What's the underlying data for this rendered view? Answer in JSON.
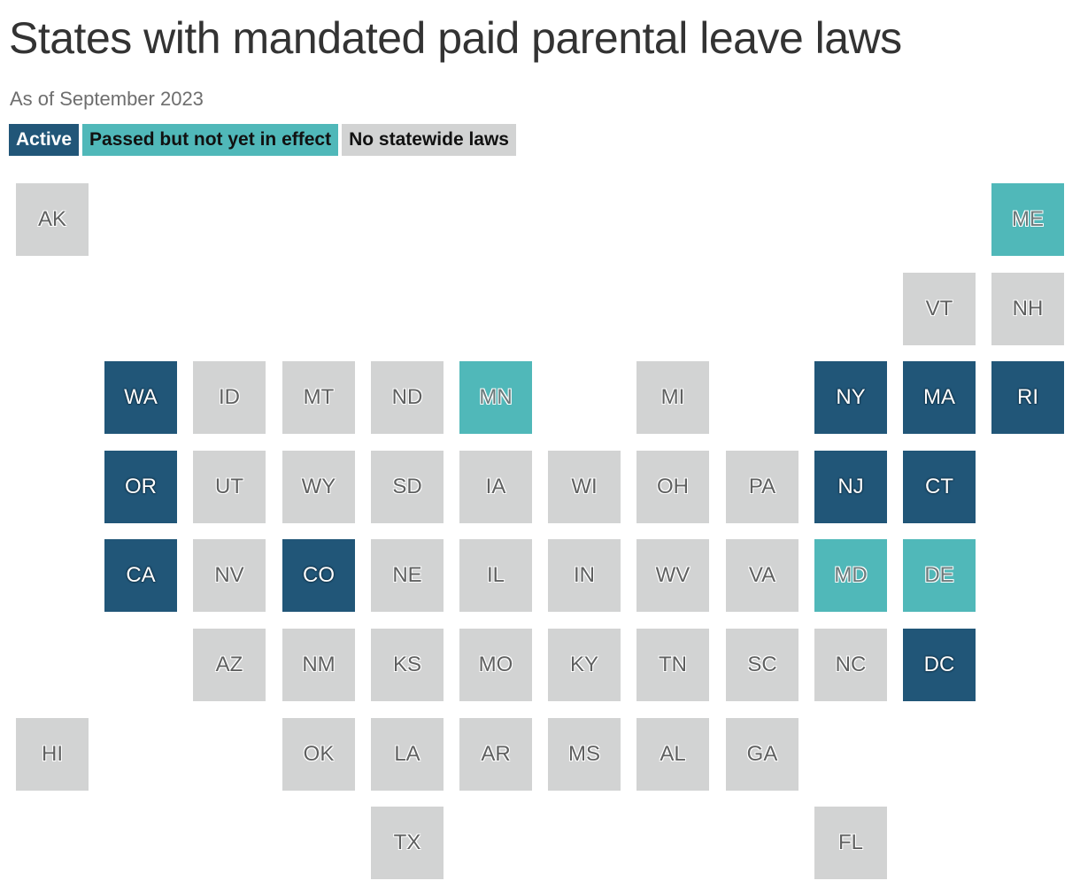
{
  "title": "States with mandated paid parental leave laws",
  "subtitle": "As of September 2023",
  "legend": {
    "active": "Active",
    "pending": "Passed but not yet in effect",
    "none": "No statewide laws"
  },
  "colors": {
    "active": "#215678",
    "pending": "#50b8b9",
    "none": "#d2d3d3"
  },
  "states": [
    {
      "abbr": "AK",
      "status": "none"
    },
    {
      "abbr": "ME",
      "status": "pending"
    },
    {
      "abbr": "VT",
      "status": "none"
    },
    {
      "abbr": "NH",
      "status": "none"
    },
    {
      "abbr": "WA",
      "status": "active"
    },
    {
      "abbr": "ID",
      "status": "none"
    },
    {
      "abbr": "MT",
      "status": "none"
    },
    {
      "abbr": "ND",
      "status": "none"
    },
    {
      "abbr": "MN",
      "status": "pending"
    },
    {
      "abbr": "MI",
      "status": "none"
    },
    {
      "abbr": "NY",
      "status": "active"
    },
    {
      "abbr": "MA",
      "status": "active"
    },
    {
      "abbr": "RI",
      "status": "active"
    },
    {
      "abbr": "OR",
      "status": "active"
    },
    {
      "abbr": "UT",
      "status": "none"
    },
    {
      "abbr": "WY",
      "status": "none"
    },
    {
      "abbr": "SD",
      "status": "none"
    },
    {
      "abbr": "IA",
      "status": "none"
    },
    {
      "abbr": "WI",
      "status": "none"
    },
    {
      "abbr": "OH",
      "status": "none"
    },
    {
      "abbr": "PA",
      "status": "none"
    },
    {
      "abbr": "NJ",
      "status": "active"
    },
    {
      "abbr": "CT",
      "status": "active"
    },
    {
      "abbr": "CA",
      "status": "active"
    },
    {
      "abbr": "NV",
      "status": "none"
    },
    {
      "abbr": "CO",
      "status": "active"
    },
    {
      "abbr": "NE",
      "status": "none"
    },
    {
      "abbr": "IL",
      "status": "none"
    },
    {
      "abbr": "IN",
      "status": "none"
    },
    {
      "abbr": "WV",
      "status": "none"
    },
    {
      "abbr": "VA",
      "status": "none"
    },
    {
      "abbr": "MD",
      "status": "pending"
    },
    {
      "abbr": "DE",
      "status": "pending"
    },
    {
      "abbr": "AZ",
      "status": "none"
    },
    {
      "abbr": "NM",
      "status": "none"
    },
    {
      "abbr": "KS",
      "status": "none"
    },
    {
      "abbr": "MO",
      "status": "none"
    },
    {
      "abbr": "KY",
      "status": "none"
    },
    {
      "abbr": "TN",
      "status": "none"
    },
    {
      "abbr": "SC",
      "status": "none"
    },
    {
      "abbr": "NC",
      "status": "none"
    },
    {
      "abbr": "DC",
      "status": "active"
    },
    {
      "abbr": "HI",
      "status": "none"
    },
    {
      "abbr": "OK",
      "status": "none"
    },
    {
      "abbr": "LA",
      "status": "none"
    },
    {
      "abbr": "AR",
      "status": "none"
    },
    {
      "abbr": "MS",
      "status": "none"
    },
    {
      "abbr": "AL",
      "status": "none"
    },
    {
      "abbr": "GA",
      "status": "none"
    },
    {
      "abbr": "TX",
      "status": "none"
    },
    {
      "abbr": "FL",
      "status": "none"
    }
  ]
}
